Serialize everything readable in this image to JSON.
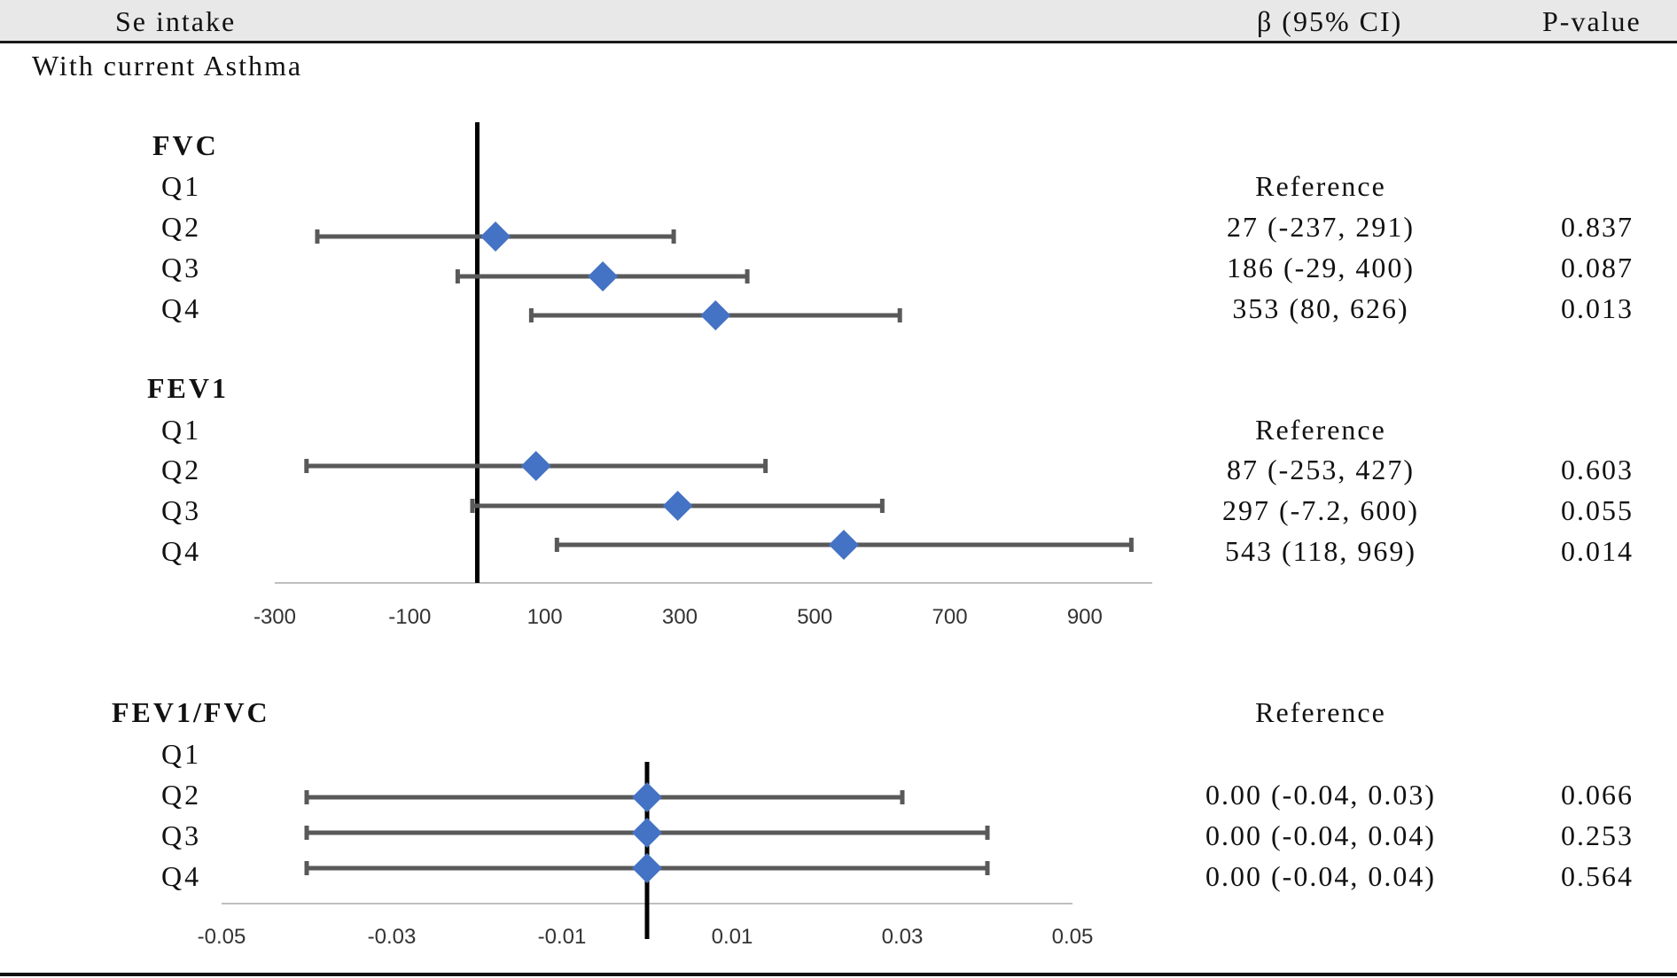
{
  "header": {
    "col_exposure": "Se intake",
    "col_beta": "β (95% CI)",
    "col_p": "P-value"
  },
  "subgroup_label": "With current Asthma",
  "colors": {
    "marker": "#4472C4",
    "whisker": "#595959",
    "ref_line": "#000000",
    "axis": "#bfbfbf"
  },
  "chart_data": [
    {
      "type": "forest",
      "axis": {
        "range": [
          -300,
          1000
        ],
        "ticks": [
          -300,
          -100,
          100,
          300,
          500,
          700,
          900
        ],
        "reference_line": 0
      },
      "sections": [
        {
          "name": "FVC",
          "rows": [
            {
              "label": "Q1",
              "beta": null,
              "lower": null,
              "upper": null,
              "ci_text": "Reference",
              "p": ""
            },
            {
              "label": "Q2",
              "beta": 27,
              "lower": -237,
              "upper": 291,
              "ci_text": "27 (-237, 291)",
              "p": "0.837"
            },
            {
              "label": "Q3",
              "beta": 186,
              "lower": -29,
              "upper": 400,
              "ci_text": "186 (-29, 400)",
              "p": "0.087"
            },
            {
              "label": "Q4",
              "beta": 353,
              "lower": 80,
              "upper": 626,
              "ci_text": "353 (80, 626)",
              "p": "0.013"
            }
          ]
        },
        {
          "name": "FEV1",
          "rows": [
            {
              "label": "Q1",
              "beta": null,
              "lower": null,
              "upper": null,
              "ci_text": "Reference",
              "p": ""
            },
            {
              "label": "Q2",
              "beta": 87,
              "lower": -253,
              "upper": 427,
              "ci_text": "87 (-253, 427)",
              "p": "0.603"
            },
            {
              "label": "Q3",
              "beta": 297,
              "lower": -7.2,
              "upper": 600,
              "ci_text": "297 (-7.2, 600)",
              "p": "0.055"
            },
            {
              "label": "Q4",
              "beta": 543,
              "lower": 118,
              "upper": 969,
              "ci_text": "543 (118, 969)",
              "p": "0.014"
            }
          ]
        }
      ]
    },
    {
      "type": "forest",
      "axis": {
        "range": [
          -0.05,
          0.05
        ],
        "ticks": [
          -0.05,
          -0.03,
          -0.01,
          0.01,
          0.03,
          0.05
        ],
        "tick_labels": [
          "-0.05",
          "-0.03",
          "-0.01",
          "0.01",
          "0.03",
          "0.05"
        ],
        "reference_line": 0
      },
      "sections": [
        {
          "name": "FEV1/FVC",
          "rows": [
            {
              "label": "Q1",
              "beta": null,
              "lower": null,
              "upper": null,
              "ci_text": "Reference",
              "p": ""
            },
            {
              "label": "Q2",
              "beta": 0.0,
              "lower": -0.04,
              "upper": 0.03,
              "ci_text": "0.00 (-0.04, 0.03)",
              "p": "0.066"
            },
            {
              "label": "Q3",
              "beta": 0.0,
              "lower": -0.04,
              "upper": 0.04,
              "ci_text": "0.00 (-0.04, 0.04)",
              "p": "0.253"
            },
            {
              "label": "Q4",
              "beta": 0.0,
              "lower": -0.04,
              "upper": 0.04,
              "ci_text": "0.00 (-0.04, 0.04)",
              "p": "0.564"
            }
          ]
        }
      ]
    }
  ]
}
